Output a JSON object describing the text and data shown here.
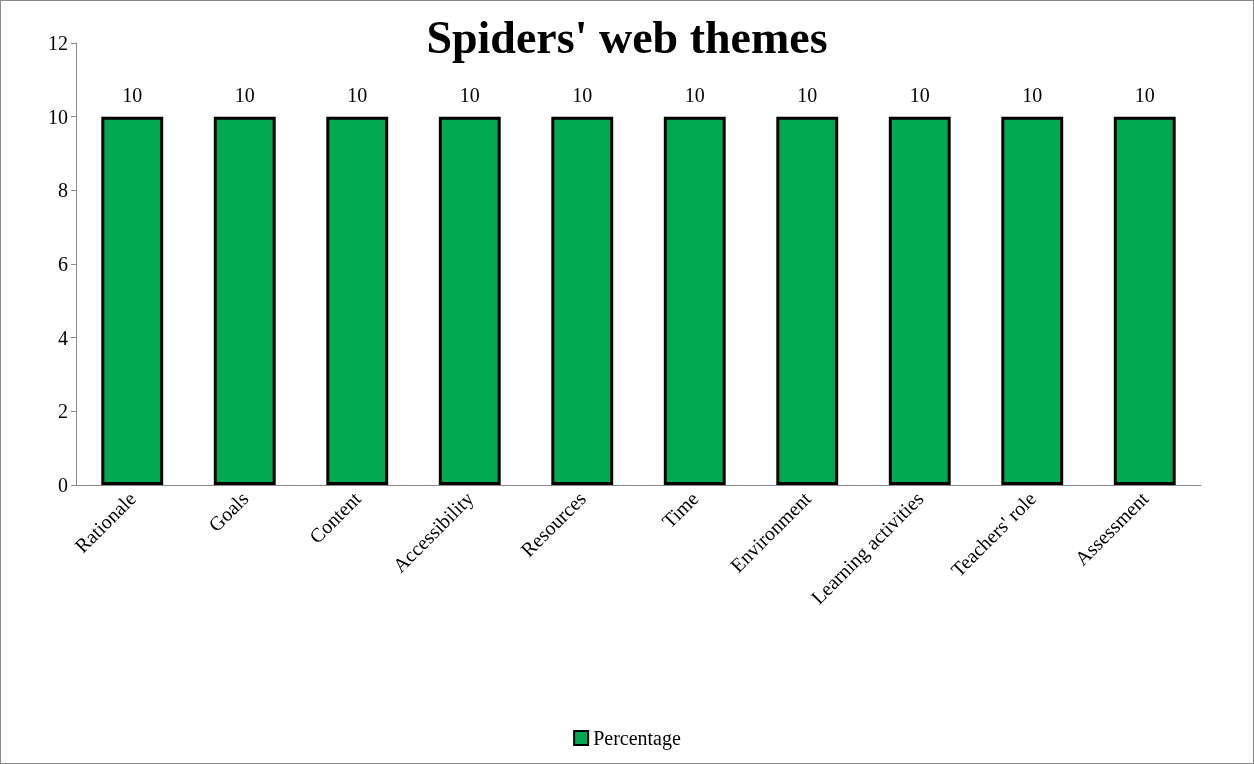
{
  "chart_data": {
    "type": "bar",
    "title": "Spiders' web themes",
    "categories": [
      "Rationale",
      "Goals",
      "Content",
      "Accessibility",
      "Resources",
      "Time",
      "Environment",
      "Learning activities",
      "Teachers' role",
      "Assessment"
    ],
    "series": [
      {
        "name": "Percentage",
        "color": "#00a84f",
        "values": [
          10,
          10,
          10,
          10,
          10,
          10,
          10,
          10,
          10,
          10
        ]
      }
    ],
    "ylim": [
      0,
      12
    ],
    "yticks": [
      0,
      2,
      4,
      6,
      8,
      10,
      12
    ],
    "grid": false,
    "legend": "bottom",
    "data_labels": true
  }
}
